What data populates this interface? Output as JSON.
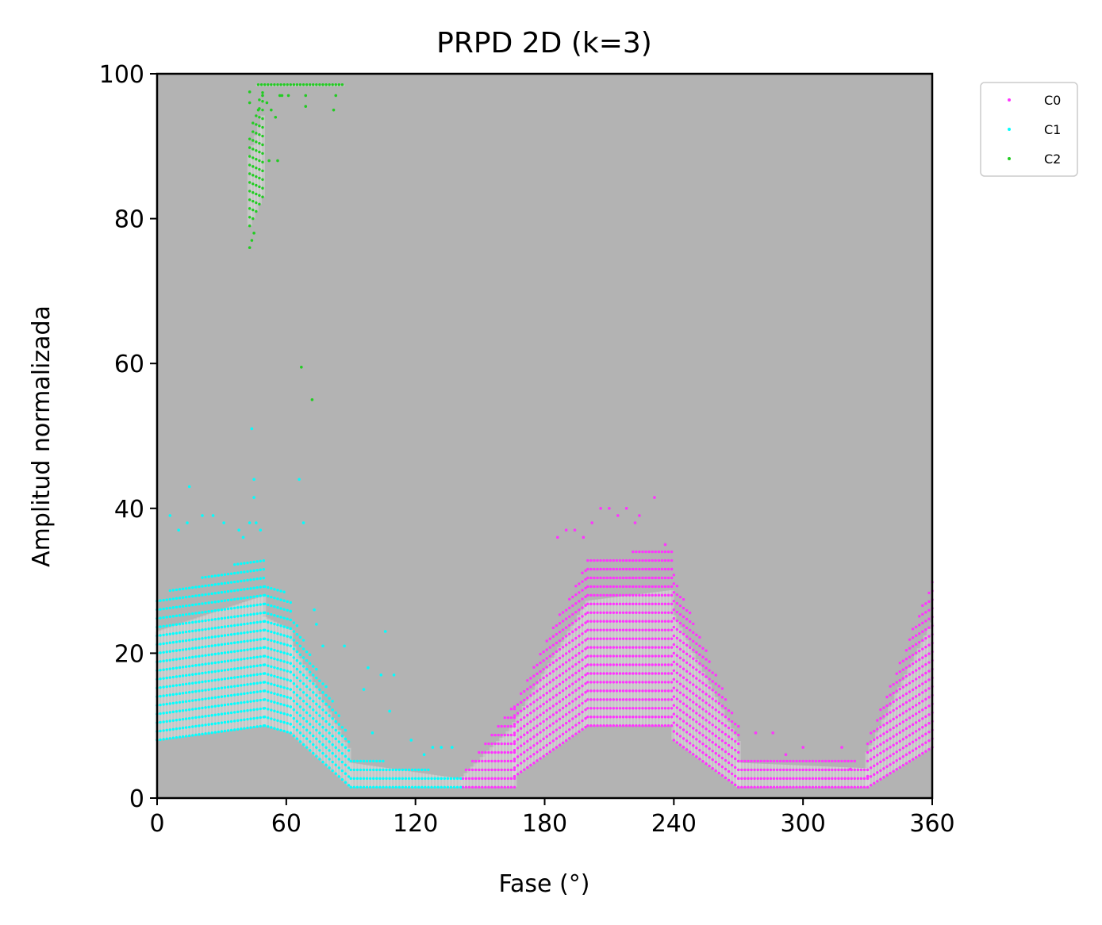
{
  "chart_data": {
    "type": "scatter",
    "title": "PRPD 2D (k=3)",
    "xlabel": "Fase (°)",
    "ylabel": "Amplitud normalizada",
    "xlim": [
      0,
      360
    ],
    "ylim": [
      0,
      100
    ],
    "xticks": [
      "0",
      "60",
      "120",
      "180",
      "240",
      "300",
      "360"
    ],
    "yticks": [
      "0",
      "20",
      "40",
      "60",
      "80",
      "100"
    ],
    "background": "#b3b3b3",
    "grid": false,
    "legend_position": "outside-top-right",
    "series": [
      {
        "name": "C0",
        "color": "#ff33ff",
        "bands": [
          {
            "x_from": 142,
            "x_to": 166,
            "y_lower": [
              1.5,
              1.5
            ],
            "y_upper": [
              3.5,
              13
            ]
          },
          {
            "x_from": 166,
            "x_to": 200,
            "y_lower": [
              3,
              10
            ],
            "y_upper": [
              13,
              33
            ]
          },
          {
            "x_from": 200,
            "x_to": 240,
            "y_lower": [
              10,
              10
            ],
            "y_upper": [
              33,
              35
            ]
          },
          {
            "x_from": 240,
            "x_to": 270,
            "y_lower": [
              8,
              1.5
            ],
            "y_upper": [
              31,
              10
            ]
          },
          {
            "x_from": 270,
            "x_to": 330,
            "y_lower": [
              1.5,
              1.5
            ],
            "y_upper": [
              6,
              5
            ]
          },
          {
            "x_from": 330,
            "x_to": 360,
            "y_lower": [
              1.5,
              7
            ],
            "y_upper": [
              8,
              30
            ]
          }
        ],
        "outliers": [
          [
            186,
            36
          ],
          [
            190,
            37
          ],
          [
            194,
            37
          ],
          [
            198,
            36
          ],
          [
            202,
            38
          ],
          [
            206,
            40
          ],
          [
            210,
            40
          ],
          [
            214,
            39
          ],
          [
            218,
            40
          ],
          [
            222,
            38
          ],
          [
            224,
            39
          ],
          [
            231,
            41.5
          ],
          [
            236,
            35
          ],
          [
            278,
            9
          ],
          [
            286,
            9
          ],
          [
            292,
            6
          ],
          [
            300,
            7
          ],
          [
            318,
            7
          ],
          [
            322,
            4
          ],
          [
            330,
            3
          ]
        ]
      },
      {
        "name": "C1",
        "color": "#00ffff",
        "bands": [
          {
            "x_from": 0,
            "x_to": 50,
            "y_lower": [
              8,
              10
            ],
            "y_upper": [
              28,
              34
            ]
          },
          {
            "x_from": 50,
            "x_to": 62,
            "y_lower": [
              10,
              9
            ],
            "y_upper": [
              30,
              28
            ]
          },
          {
            "x_from": 62,
            "x_to": 90,
            "y_lower": [
              9,
              1.5
            ],
            "y_upper": [
              26,
              8
            ]
          },
          {
            "x_from": 90,
            "x_to": 142,
            "y_lower": [
              1.5,
              1.5
            ],
            "y_upper": [
              6,
              3
            ]
          }
        ],
        "outliers": [
          [
            6,
            39
          ],
          [
            10,
            37
          ],
          [
            14,
            38
          ],
          [
            15,
            43
          ],
          [
            21,
            39
          ],
          [
            26,
            39
          ],
          [
            31,
            38
          ],
          [
            38,
            37
          ],
          [
            40,
            36
          ],
          [
            43,
            38
          ],
          [
            45,
            44
          ],
          [
            45,
            41.5
          ],
          [
            46,
            38
          ],
          [
            48,
            37
          ],
          [
            44,
            51
          ],
          [
            66,
            44
          ],
          [
            68,
            38
          ],
          [
            73,
            26
          ],
          [
            74,
            24
          ],
          [
            77,
            21
          ],
          [
            87,
            21
          ],
          [
            96,
            15
          ],
          [
            98,
            18
          ],
          [
            100,
            9
          ],
          [
            104,
            17
          ],
          [
            106,
            23
          ],
          [
            108,
            12
          ],
          [
            110,
            17
          ],
          [
            118,
            8
          ],
          [
            124,
            6
          ],
          [
            128,
            7
          ],
          [
            132,
            7
          ],
          [
            137,
            7
          ]
        ]
      },
      {
        "name": "C2",
        "color": "#22cc22",
        "bands": [
          {
            "x_from": 43,
            "x_to": 49,
            "y_lower": [
              79,
              83
            ],
            "y_upper": [
              92,
              98
            ]
          },
          {
            "x_from": 47,
            "x_to": 86,
            "y_lower": [
              98.5,
              98.5
            ],
            "y_upper": [
              98.5,
              98.5
            ]
          }
        ],
        "outliers": [
          [
            43,
            76
          ],
          [
            44,
            77
          ],
          [
            45,
            78
          ],
          [
            43,
            97.5
          ],
          [
            43,
            96
          ],
          [
            47,
            95
          ],
          [
            49,
            97
          ],
          [
            51,
            96
          ],
          [
            53,
            95
          ],
          [
            55,
            94
          ],
          [
            57,
            97
          ],
          [
            52,
            88
          ],
          [
            56,
            88
          ],
          [
            58,
            97
          ],
          [
            61,
            97
          ],
          [
            67,
            59.5
          ],
          [
            69,
            97
          ],
          [
            69,
            95.5
          ],
          [
            72,
            55
          ],
          [
            82,
            95
          ],
          [
            83,
            97
          ]
        ]
      }
    ]
  }
}
